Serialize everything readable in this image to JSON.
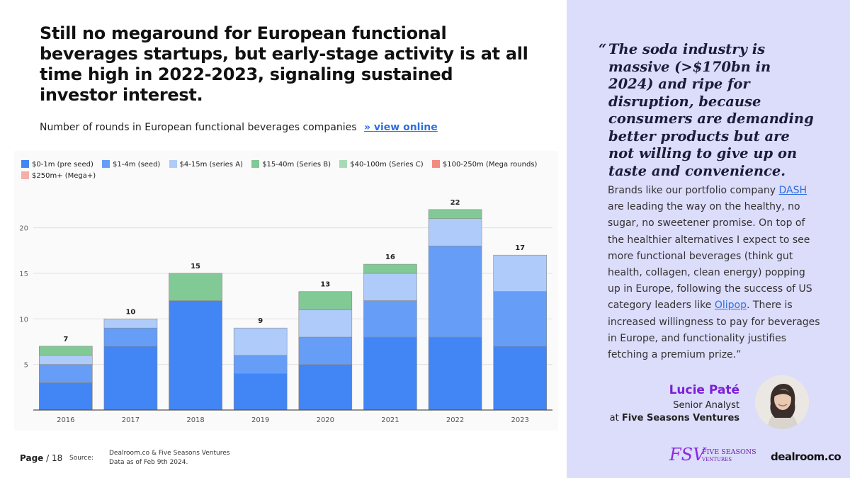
{
  "headline": "Still no megaround for European functional beverages startups, but early-stage activity is at all time high in 2022-2023, signaling sustained investor interest.",
  "subtitle": {
    "text": "Number of rounds in European functional beverages companies",
    "link": "» view online"
  },
  "legend": [
    {
      "label": "$0-1m (pre seed)",
      "color": "#4285f4"
    },
    {
      "label": "$1-4m (seed)",
      "color": "#669df6"
    },
    {
      "label": "$4-15m (series A)",
      "color": "#aecbfa"
    },
    {
      "label": "$15-40m (Series B)",
      "color": "#81c995"
    },
    {
      "label": "$40-100m (Series C)",
      "color": "#a8dab5"
    },
    {
      "label": "$100-250m (Mega rounds)",
      "color": "#f28b82"
    },
    {
      "label": "$250m+ (Mega+)",
      "color": "#f6aea9"
    }
  ],
  "chart_data": {
    "type": "bar",
    "stacked": true,
    "categories": [
      "2016",
      "2017",
      "2018",
      "2019",
      "2020",
      "2021",
      "2022",
      "2023"
    ],
    "series": [
      {
        "name": "$0-1m (pre seed)",
        "color": "#4285f4",
        "values": [
          3,
          7,
          12,
          4,
          5,
          8,
          8,
          7
        ]
      },
      {
        "name": "$1-4m (seed)",
        "color": "#669df6",
        "values": [
          2,
          2,
          0,
          2,
          3,
          4,
          10,
          6
        ]
      },
      {
        "name": "$4-15m (series A)",
        "color": "#aecbfa",
        "values": [
          1,
          1,
          0,
          3,
          3,
          3,
          3,
          4
        ]
      },
      {
        "name": "$15-40m (Series B)",
        "color": "#81c995",
        "values": [
          1,
          0,
          3,
          0,
          2,
          1,
          1,
          0
        ]
      },
      {
        "name": "$40-100m (Series C)",
        "color": "#a8dab5",
        "values": [
          0,
          0,
          0,
          0,
          0,
          0,
          0,
          0
        ]
      },
      {
        "name": "$100-250m (Mega rounds)",
        "color": "#f28b82",
        "values": [
          0,
          0,
          0,
          0,
          0,
          0,
          0,
          0
        ]
      },
      {
        "name": "$250m+ (Mega+)",
        "color": "#f6aea9",
        "values": [
          0,
          0,
          0,
          0,
          0,
          0,
          0,
          0
        ]
      }
    ],
    "totals": [
      7,
      10,
      15,
      9,
      13,
      16,
      22,
      17
    ],
    "yticks": [
      5,
      10,
      15,
      20
    ],
    "ylim": [
      0,
      23
    ],
    "grid": true,
    "legend_position": "top"
  },
  "footer": {
    "page_word": "Page",
    "page_rest": " / 18",
    "source_label": "Source:",
    "source_line1": "Dealroom.co & Five Seasons Ventures",
    "source_line2": "Data as of Feb 9th 2024."
  },
  "quote": {
    "open_mark": "“",
    "text": "The soda industry is massive (>$170bn in 2024) and ripe for disruption, because consumers are demanding better products but are not willing to give up on taste and convenience."
  },
  "body": {
    "p1": "Brands like our portfolio company ",
    "link1": "DASH",
    "p2": " are leading the way on the healthy, no sugar, no sweetener promise. On top of the healthier alternatives I expect to see more functional beverages (think gut health, collagen, clean energy) popping up in Europe, following the success of US category leaders like ",
    "link2": "Olipop",
    "p3": ". There is increased willingness to pay for beverages in Europe, and functionality justifies fetching a premium prize.”"
  },
  "person": {
    "name": "Lucie Paté",
    "role": "Senior Analyst",
    "company_prefix": "at ",
    "company": "Five Seasons Ventures"
  },
  "logos": {
    "fsv_mark": "FSV",
    "fsv_line1": "FIVE SEASONS",
    "fsv_line2": "VENTURES",
    "dealroom": "dealroom.co"
  }
}
